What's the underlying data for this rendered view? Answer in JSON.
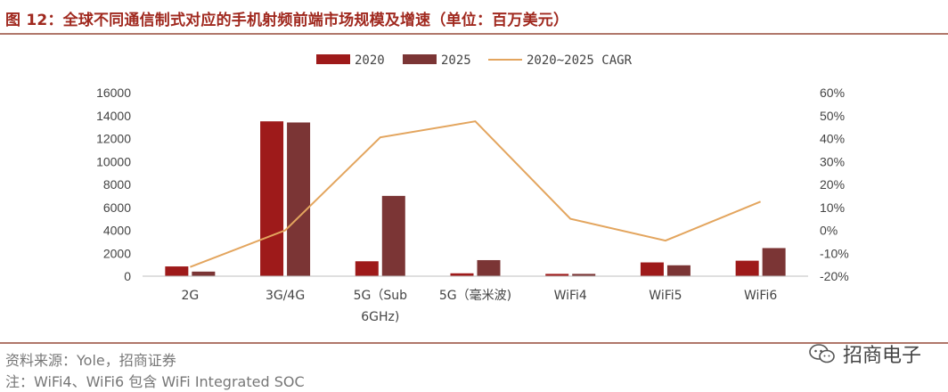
{
  "title": "图 12：全球不同通信制式对应的手机射频前端市场规模及增速（单位：百万美元）",
  "source": "资料来源：Yole，招商证券",
  "note": "注：WiFi4、WiFi6 包含 WiFi Integrated SOC",
  "watermark": "招商电子",
  "colors": {
    "title": "#a0291f",
    "s2020": "#9e1a1a",
    "s2025": "#7b3535",
    "cagr": "#e3a55e",
    "axis": "#bfbfbf"
  },
  "chart_data": {
    "type": "bar",
    "categories": [
      "2G",
      "3G/4G",
      "5G（Sub 6GHz)",
      "5G（毫米波)",
      "WiFi4",
      "WiFi5",
      "WiFi6"
    ],
    "category_lines": [
      [
        "2G"
      ],
      [
        "3G/4G"
      ],
      [
        "5G（Sub",
        "6GHz)"
      ],
      [
        "5G（毫米波)"
      ],
      [
        "WiFi4"
      ],
      [
        "WiFi5"
      ],
      [
        "WiFi6"
      ]
    ],
    "series": [
      {
        "name": "2020",
        "kind": "bar",
        "axis": "left",
        "values": [
          850,
          13500,
          1300,
          250,
          200,
          1200,
          1350
        ]
      },
      {
        "name": "2025",
        "kind": "bar",
        "axis": "left",
        "values": [
          400,
          13400,
          7000,
          1400,
          200,
          950,
          2450
        ]
      },
      {
        "name": "2020~2025 CAGR",
        "kind": "line",
        "axis": "right",
        "values": [
          -0.16,
          0.0,
          0.405,
          0.475,
          0.05,
          -0.045,
          0.125
        ]
      }
    ],
    "y_left": {
      "min": 0,
      "max": 16000,
      "ticks": [
        0,
        2000,
        4000,
        6000,
        8000,
        10000,
        12000,
        14000,
        16000
      ]
    },
    "y_right": {
      "min": -0.2,
      "max": 0.6,
      "ticks": [
        "-20%",
        "-10%",
        "0%",
        "10%",
        "20%",
        "30%",
        "40%",
        "50%",
        "60%"
      ]
    },
    "legend_position": "top",
    "grid": false
  }
}
